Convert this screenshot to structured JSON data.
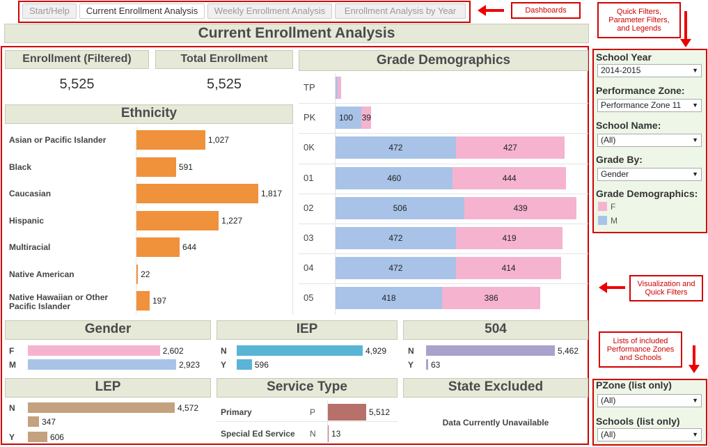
{
  "tabs": [
    "Start/Help",
    "Current Enrollment Analysis",
    "Weekly Enrollment Analysis",
    "Enrollment Analysis by Year"
  ],
  "active_tab": 1,
  "callouts": {
    "dashboards": "Dashboards",
    "quick_filters": "Quick Filters, Parameter Filters, and Legends",
    "visualization": "Visualization and Quick Filters",
    "lists": "Lists of included Performance Zones and Schools"
  },
  "title": "Current Enrollment Analysis",
  "kpi": {
    "filtered_label": "Enrollment (Filtered)",
    "filtered_value": "5,525",
    "total_label": "Total Enrollment",
    "total_value": "5,525"
  },
  "ethnicity": {
    "title": "Ethnicity",
    "rows": [
      {
        "label": "Asian or Pacific Islander",
        "value": 1027,
        "display": "1,027"
      },
      {
        "label": "Black",
        "value": 591,
        "display": "591"
      },
      {
        "label": "Caucasian",
        "value": 1817,
        "display": "1,817"
      },
      {
        "label": "Hispanic",
        "value": 1227,
        "display": "1,227"
      },
      {
        "label": "Multiracial",
        "value": 644,
        "display": "644"
      },
      {
        "label": "Native American",
        "value": 22,
        "display": "22"
      },
      {
        "label": "Native Hawaiian or Other Pacific Islander",
        "value": 197,
        "display": "197"
      }
    ]
  },
  "grade": {
    "title": "Grade Demographics",
    "rows": [
      {
        "grade": "TP",
        "m": 8,
        "f": 13,
        "m_label": "",
        "f_label": ""
      },
      {
        "grade": "PK",
        "m": 100,
        "f": 39,
        "m_label": "100",
        "f_label": "39"
      },
      {
        "grade": "0K",
        "m": 472,
        "f": 427,
        "m_label": "472",
        "f_label": "427"
      },
      {
        "grade": "01",
        "m": 460,
        "f": 444,
        "m_label": "460",
        "f_label": "444"
      },
      {
        "grade": "02",
        "m": 506,
        "f": 439,
        "m_label": "506",
        "f_label": "439"
      },
      {
        "grade": "03",
        "m": 472,
        "f": 419,
        "m_label": "472",
        "f_label": "419"
      },
      {
        "grade": "04",
        "m": 472,
        "f": 414,
        "m_label": "472",
        "f_label": "414"
      },
      {
        "grade": "05",
        "m": 418,
        "f": 386,
        "m_label": "418",
        "f_label": "386"
      }
    ]
  },
  "gender": {
    "title": "Gender",
    "rows": [
      {
        "label": "F",
        "value": 2602,
        "display": "2,602"
      },
      {
        "label": "M",
        "value": 2923,
        "display": "2,923"
      }
    ]
  },
  "iep": {
    "title": "IEP",
    "rows": [
      {
        "label": "N",
        "value": 4929,
        "display": "4,929"
      },
      {
        "label": "Y",
        "value": 596,
        "display": "596"
      }
    ]
  },
  "s504": {
    "title": "504",
    "rows": [
      {
        "label": "N",
        "value": 5462,
        "display": "5,462"
      },
      {
        "label": "Y",
        "value": 63,
        "display": "63"
      }
    ]
  },
  "lep": {
    "title": "LEP",
    "rows": [
      {
        "label": "N",
        "value": 4572,
        "display": "4,572"
      },
      {
        "label": "",
        "value": 347,
        "display": "347"
      },
      {
        "label": "Y",
        "value": 606,
        "display": "606"
      }
    ]
  },
  "service": {
    "title": "Service Type",
    "rows": [
      {
        "label": "Primary",
        "code": "P",
        "value": 5512,
        "display": "5,512"
      },
      {
        "label": "Special Ed Service",
        "code": "N",
        "value": 13,
        "display": "13"
      }
    ]
  },
  "state_excluded": {
    "title": "State Excluded",
    "message": "Data Currently Unavailable"
  },
  "filters": {
    "school_year_label": "School Year",
    "school_year_value": "2014-2015",
    "pzone_label": "Performance Zone:",
    "pzone_value": "Performance Zone 11",
    "school_name_label": "School Name:",
    "school_name_value": "(All)",
    "grade_by_label": "Grade By:",
    "grade_by_value": "Gender",
    "legend_label": "Grade Demographics:",
    "legend_f": "F",
    "legend_m": "M",
    "pzone_list_label": "PZone (list only)",
    "pzone_list_value": "(All)",
    "schools_list_label": "Schools (list only)",
    "schools_list_value": "(All)"
  },
  "colors": {
    "orange": "#f0913c",
    "pink": "#f5b3d0",
    "blue": "#a9c3e8",
    "teal": "#5ab4d6",
    "lavender": "#a9a2cc",
    "tan": "#c4a27f",
    "rose": "#b8706a"
  }
}
